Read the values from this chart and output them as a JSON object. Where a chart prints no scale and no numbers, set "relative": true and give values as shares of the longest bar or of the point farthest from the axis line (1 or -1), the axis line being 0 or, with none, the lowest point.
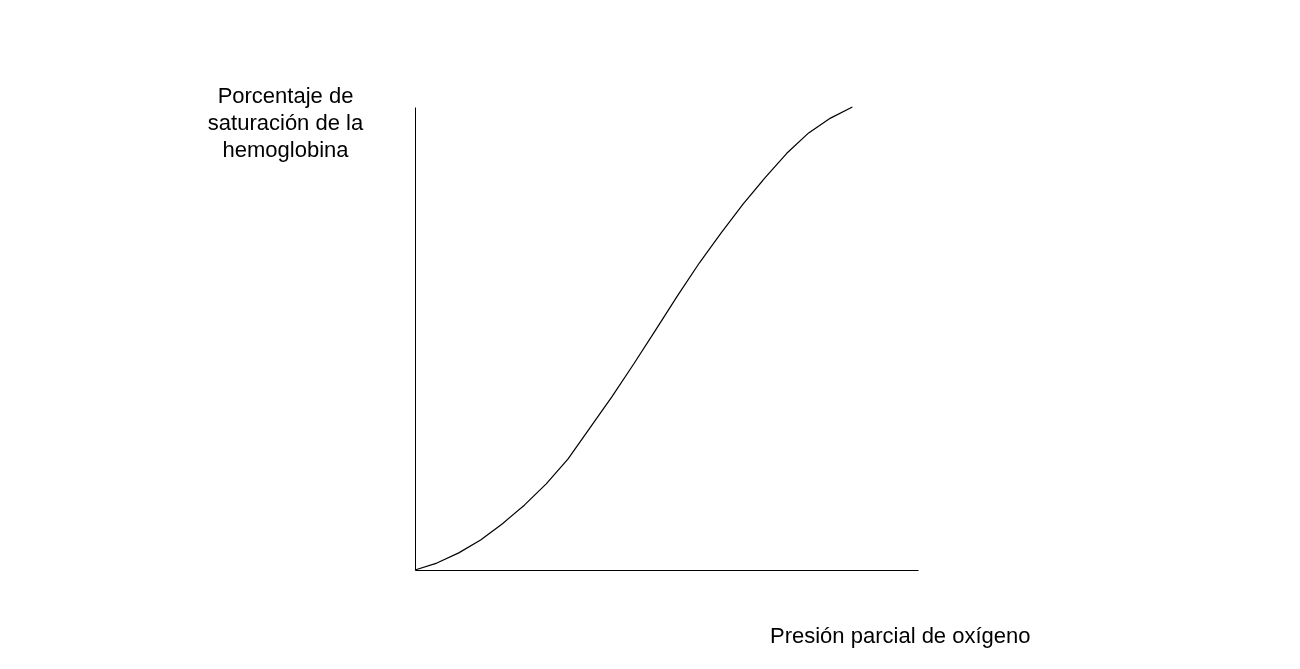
{
  "chart_data": {
    "type": "line",
    "relative": true,
    "xlabel": "Presión parcial de oxígeno",
    "ylabel": "Porcentaje de saturación de la hemoglobina",
    "categories": [
      null,
      null,
      null,
      null,
      null,
      null,
      null,
      null,
      null,
      null,
      null,
      null,
      null,
      null,
      null,
      null,
      null,
      null,
      null,
      null,
      null,
      null,
      null,
      null
    ],
    "series": [
      {
        "color": "#000000",
        "values": [
          0,
          0.015,
          0.037,
          0.065,
          0.1,
          0.14,
          0.186,
          0.24,
          0.307,
          0.374,
          0.445,
          0.518,
          0.592,
          0.663,
          0.728,
          0.79,
          0.847,
          0.9,
          0.944,
          0.976,
          1.0,
          null,
          null,
          null
        ]
      }
    ],
    "grid": false,
    "marker": "none",
    "line_style": "solid",
    "tick_labels": false
  }
}
